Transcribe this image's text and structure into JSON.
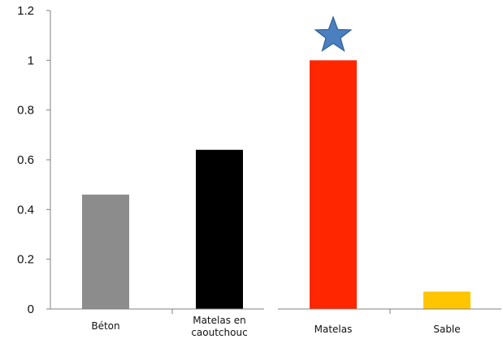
{
  "chart_data": {
    "type": "bar",
    "categories": [
      "Béton",
      "Matelas en caoutchouc",
      "Matelas",
      "Sable"
    ],
    "category_label_lines": [
      [
        "Béton"
      ],
      [
        "Matelas en",
        "caoutchouc"
      ],
      [
        "Matelas"
      ],
      [
        "Sable"
      ]
    ],
    "values": [
      0.46,
      0.64,
      1.0,
      0.07
    ],
    "bar_colors": [
      "#8c8c8c",
      "#000000",
      "#ff2600",
      "#ffc600"
    ],
    "ylim": [
      0,
      1.2
    ],
    "yticks": [
      0,
      0.2,
      0.4,
      0.6,
      0.8,
      1,
      1.2
    ],
    "ytick_labels": [
      "0",
      "0.2",
      "0.4",
      "0.6",
      "0.8",
      "1",
      "1.2"
    ],
    "grid": false,
    "title": "",
    "xlabel": "",
    "ylabel": "",
    "annotations": [
      {
        "type": "star-marker",
        "category_index": 2,
        "color": "#4a80c0"
      }
    ]
  }
}
